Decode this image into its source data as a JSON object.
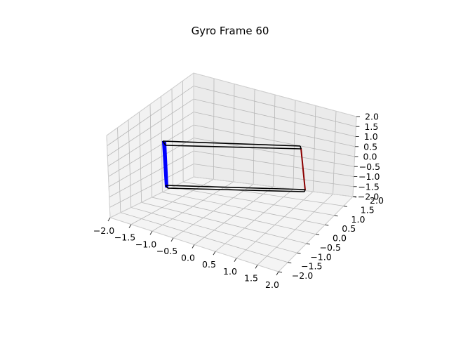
{
  "chart_data": {
    "type": "3d-wireframe",
    "title": "Gyro Frame 60",
    "xlim": [
      -2.0,
      2.0
    ],
    "ylim": [
      -2.0,
      2.0
    ],
    "zlim": [
      -2.0,
      2.0
    ],
    "x_ticks": [
      "−2.0",
      "−1.5",
      "−1.0",
      "−0.5",
      "0.0",
      "0.5",
      "1.0",
      "1.5",
      "2.0"
    ],
    "y_ticks": [
      "−2.0",
      "−1.5",
      "−1.0",
      "−0.5",
      "0.0",
      "0.5",
      "1.0",
      "1.5",
      "2.0"
    ],
    "z_ticks": [
      "−2.0",
      "−1.5",
      "−1.0",
      "−0.5",
      "0.0",
      "0.5",
      "1.0",
      "1.5",
      "2.0"
    ],
    "grid": true,
    "colors": {
      "box_edges": "#000000",
      "left_edge": "#0000ff",
      "right_edge": "#8b0000"
    }
  }
}
